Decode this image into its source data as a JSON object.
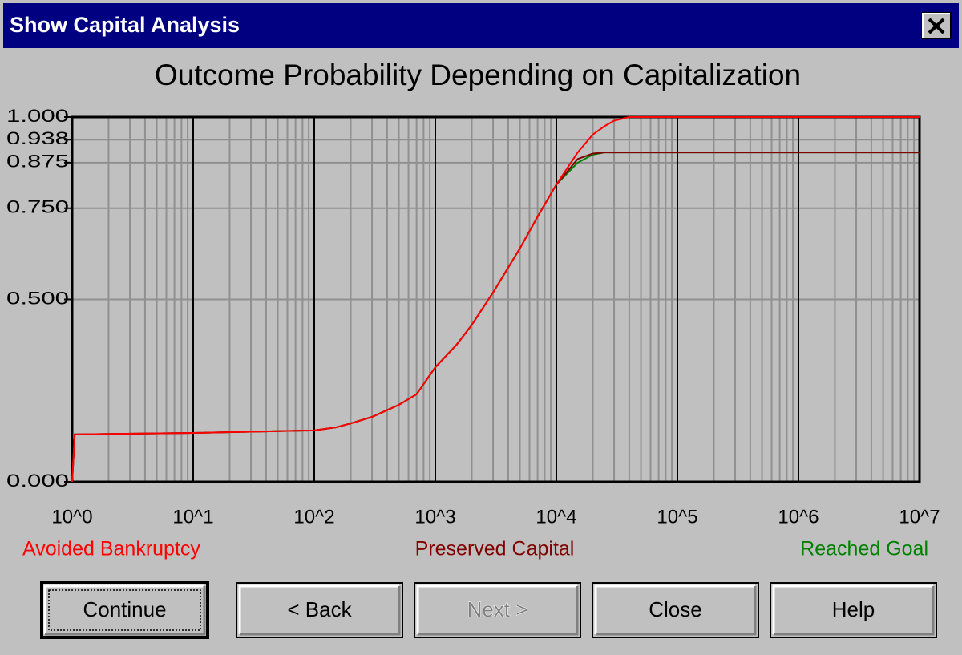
{
  "window": {
    "title": "Show Capital Analysis"
  },
  "chart_data": {
    "type": "line",
    "title": "Outcome Probability Depending on Capitalization",
    "x": [
      1,
      1.05,
      10,
      100,
      150,
      200,
      300,
      500,
      700,
      1000,
      1500,
      2000,
      3000,
      5000,
      7000,
      10000,
      15000,
      20000,
      25000,
      30000,
      40000,
      10000000
    ],
    "series": [
      {
        "name": "Avoided Bankruptcy",
        "color": "#ff0000",
        "values": [
          0,
          0.13,
          0.134,
          0.141,
          0.149,
          0.16,
          0.178,
          0.211,
          0.24,
          0.314,
          0.376,
          0.43,
          0.519,
          0.64,
          0.727,
          0.815,
          0.903,
          0.952,
          0.975,
          0.99,
          1.0,
          1.0
        ]
      },
      {
        "name": "Preserved Capital",
        "color": "#800000",
        "values": [
          0,
          0.13,
          0.134,
          0.141,
          0.149,
          0.16,
          0.178,
          0.211,
          0.24,
          0.314,
          0.376,
          0.43,
          0.519,
          0.64,
          0.727,
          0.815,
          0.885,
          0.9,
          0.903,
          0.903,
          0.903,
          0.903
        ]
      },
      {
        "name": "Reached Goal",
        "color": "#008000",
        "values": [
          0,
          0.13,
          0.134,
          0.141,
          0.149,
          0.16,
          0.178,
          0.211,
          0.24,
          0.314,
          0.376,
          0.43,
          0.519,
          0.64,
          0.727,
          0.815,
          0.875,
          0.897,
          0.903,
          0.903,
          0.903,
          0.903
        ]
      }
    ],
    "xlim": [
      1,
      10000000
    ],
    "xticks": [
      {
        "value": 1,
        "label": "10^0"
      },
      {
        "value": 10,
        "label": "10^1"
      },
      {
        "value": 100,
        "label": "10^2"
      },
      {
        "value": 1000,
        "label": "10^3"
      },
      {
        "value": 10000,
        "label": "10^4"
      },
      {
        "value": 100000,
        "label": "10^5"
      },
      {
        "value": 1000000,
        "label": "10^6"
      },
      {
        "value": 10000000,
        "label": "10^7"
      }
    ],
    "ylim": [
      0,
      1
    ],
    "yticks": [
      {
        "value": 0,
        "label": "0.000"
      },
      {
        "value": 0.5,
        "label": "0.500"
      },
      {
        "value": 0.75,
        "label": "0.750"
      },
      {
        "value": 0.875,
        "label": "0.875"
      },
      {
        "value": 0.938,
        "label": "0.938"
      },
      {
        "value": 1,
        "label": "1.000"
      }
    ],
    "log_x": true,
    "grid": true
  },
  "buttons": [
    {
      "label": "Continue",
      "default": true
    },
    {
      "label": "< Back"
    },
    {
      "label": "Next >",
      "disabled": true
    },
    {
      "label": "Close"
    },
    {
      "label": "Help"
    }
  ]
}
